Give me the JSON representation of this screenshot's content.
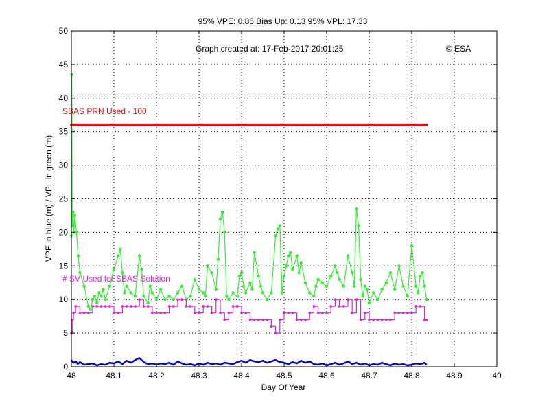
{
  "chart_data": {
    "type": "line",
    "title": "95% VPE: 0.86  Bias Up: 0.13  95% VPL: 17.33",
    "xlabel": "Day Of Year",
    "ylabel": "VPE in blue (m) / VPL in green (m)",
    "xlim": [
      48,
      49
    ],
    "ylim": [
      0,
      50
    ],
    "grid": true,
    "x_ticks": [
      "48",
      "48.1",
      "48.2",
      "48.3",
      "48.4",
      "48.5",
      "48.6",
      "48.7",
      "48.8",
      "48.9",
      "49"
    ],
    "y_ticks": [
      "0",
      "5",
      "10",
      "15",
      "20",
      "25",
      "30",
      "35",
      "40",
      "45",
      "50"
    ],
    "annotations": {
      "created": "Graph created at: 17-Feb-2017 20:01:25",
      "copyright": "© ESA",
      "sbas_prn": "SBAS PRN Used - 100",
      "sv_used": "# SV Used for SBAS Solution"
    },
    "colors": {
      "vpl": "#33ee33",
      "vpe": "#0000cc",
      "sv": "#dd22dd",
      "prn": "#dd1111"
    },
    "series": [
      {
        "key": "vpl",
        "x": [
          48.0,
          48.001,
          48.002,
          48.004,
          48.006,
          48.008,
          48.012,
          48.016,
          48.02,
          48.03,
          48.04,
          48.045,
          48.05,
          48.055,
          48.06,
          48.065,
          48.07,
          48.075,
          48.08,
          48.09,
          48.1,
          48.11,
          48.115,
          48.12,
          48.125,
          48.13,
          48.14,
          48.15,
          48.16,
          48.165,
          48.17,
          48.18,
          48.185,
          48.19,
          48.2,
          48.21,
          48.22,
          48.23,
          48.24,
          48.25,
          48.26,
          48.27,
          48.28,
          48.29,
          48.3,
          48.31,
          48.315,
          48.32,
          48.33,
          48.34,
          48.345,
          48.35,
          48.355,
          48.36,
          48.365,
          48.37,
          48.38,
          48.39,
          48.395,
          48.4,
          48.405,
          48.41,
          48.42,
          48.425,
          48.43,
          48.44,
          48.445,
          48.45,
          48.46,
          48.47,
          48.48,
          48.485,
          48.49,
          48.495,
          48.5,
          48.505,
          48.51,
          48.515,
          48.52,
          48.53,
          48.535,
          48.54,
          48.55,
          48.56,
          48.57,
          48.575,
          48.58,
          48.59,
          48.6,
          48.61,
          48.62,
          48.625,
          48.63,
          48.64,
          48.65,
          48.66,
          48.665,
          48.67,
          48.675,
          48.68,
          48.685,
          48.69,
          48.695,
          48.7,
          48.71,
          48.72,
          48.73,
          48.74,
          48.75,
          48.76,
          48.77,
          48.78,
          48.79,
          48.8,
          48.81,
          48.815,
          48.82,
          48.825,
          48.83,
          48.835
        ],
        "y": [
          19.5,
          43.5,
          21.0,
          23.0,
          20.0,
          22.5,
          20.0,
          16.5,
          14.0,
          12.0,
          9.0,
          8.5,
          10.0,
          10.5,
          9.5,
          11.0,
          10.5,
          11.5,
          10.0,
          12.0,
          14.5,
          16.5,
          17.5,
          14.0,
          11.0,
          12.0,
          11.0,
          10.5,
          16.5,
          14.5,
          10.5,
          9.5,
          12.0,
          11.0,
          10.0,
          11.5,
          10.0,
          10.5,
          10.0,
          11.0,
          12.0,
          10.0,
          10.5,
          13.0,
          11.5,
          11.0,
          10.5,
          15.0,
          14.0,
          11.5,
          16.0,
          22.0,
          23.0,
          20.0,
          10.5,
          10.0,
          11.0,
          10.5,
          13.5,
          14.0,
          12.0,
          11.0,
          12.5,
          11.5,
          17.0,
          13.5,
          12.0,
          11.0,
          10.0,
          11.0,
          19.5,
          20.5,
          21.0,
          11.0,
          13.5,
          15.0,
          16.5,
          17.0,
          14.5,
          16.5,
          14.0,
          15.5,
          12.5,
          11.0,
          10.5,
          12.0,
          13.0,
          12.5,
          12.0,
          13.5,
          15.0,
          14.0,
          13.0,
          12.0,
          16.5,
          14.0,
          12.0,
          23.5,
          21.0,
          13.0,
          10.5,
          12.0,
          11.5,
          9.5,
          11.0,
          10.0,
          11.5,
          12.5,
          14.0,
          11.5,
          15.0,
          12.0,
          10.5,
          18.0,
          12.0,
          11.0,
          13.5,
          14.0,
          12.0,
          10.0
        ]
      },
      {
        "key": "sv",
        "x": [
          48.0,
          48.002,
          48.005,
          48.01,
          48.02,
          48.03,
          48.04,
          48.05,
          48.06,
          48.07,
          48.08,
          48.09,
          48.1,
          48.11,
          48.12,
          48.13,
          48.14,
          48.15,
          48.16,
          48.17,
          48.18,
          48.19,
          48.2,
          48.21,
          48.22,
          48.23,
          48.24,
          48.25,
          48.26,
          48.27,
          48.28,
          48.29,
          48.3,
          48.31,
          48.32,
          48.33,
          48.34,
          48.35,
          48.36,
          48.37,
          48.38,
          48.39,
          48.4,
          48.41,
          48.42,
          48.43,
          48.44,
          48.45,
          48.46,
          48.47,
          48.48,
          48.49,
          48.5,
          48.51,
          48.52,
          48.53,
          48.54,
          48.55,
          48.56,
          48.57,
          48.58,
          48.59,
          48.6,
          48.61,
          48.62,
          48.63,
          48.64,
          48.65,
          48.66,
          48.67,
          48.68,
          48.69,
          48.7,
          48.71,
          48.72,
          48.73,
          48.74,
          48.75,
          48.76,
          48.77,
          48.78,
          48.79,
          48.8,
          48.81,
          48.82,
          48.83,
          48.835
        ],
        "y": [
          5,
          7,
          8,
          9,
          8,
          8,
          8,
          9,
          9,
          9,
          9,
          9,
          8,
          8,
          9,
          9,
          9,
          9,
          10,
          9,
          9,
          8,
          8,
          8,
          8,
          9,
          9,
          10,
          10,
          9,
          9,
          8,
          8,
          9,
          9,
          8,
          10,
          8,
          7,
          8,
          9,
          9,
          8,
          8,
          7,
          7,
          7,
          7,
          7,
          6,
          5,
          7,
          8,
          8,
          8,
          7,
          7,
          7,
          8,
          9,
          8,
          8,
          8,
          9,
          10,
          9,
          9,
          10,
          8,
          10,
          7,
          8,
          7,
          7,
          7,
          7,
          7,
          7,
          8,
          8,
          8,
          8,
          8,
          9,
          9,
          7,
          7
        ]
      },
      {
        "key": "vpe",
        "x": [
          48.0,
          48.005,
          48.01,
          48.015,
          48.02,
          48.03,
          48.04,
          48.05,
          48.06,
          48.07,
          48.08,
          48.09,
          48.1,
          48.11,
          48.12,
          48.13,
          48.14,
          48.15,
          48.16,
          48.17,
          48.18,
          48.19,
          48.2,
          48.21,
          48.22,
          48.23,
          48.24,
          48.25,
          48.26,
          48.27,
          48.28,
          48.29,
          48.3,
          48.31,
          48.32,
          48.33,
          48.34,
          48.35,
          48.36,
          48.37,
          48.38,
          48.39,
          48.4,
          48.41,
          48.42,
          48.43,
          48.44,
          48.45,
          48.46,
          48.47,
          48.48,
          48.49,
          48.5,
          48.51,
          48.52,
          48.53,
          48.54,
          48.55,
          48.56,
          48.57,
          48.58,
          48.59,
          48.6,
          48.61,
          48.62,
          48.63,
          48.64,
          48.65,
          48.66,
          48.67,
          48.68,
          48.69,
          48.7,
          48.71,
          48.72,
          48.73,
          48.74,
          48.75,
          48.76,
          48.77,
          48.78,
          48.79,
          48.8,
          48.81,
          48.82,
          48.83,
          48.835
        ],
        "y": [
          1.0,
          0.6,
          0.8,
          0.4,
          0.7,
          0.3,
          0.4,
          0.5,
          0.2,
          0.4,
          0.3,
          0.6,
          0.5,
          0.8,
          0.4,
          0.9,
          0.6,
          1.0,
          1.3,
          0.7,
          0.4,
          0.5,
          0.3,
          0.5,
          0.4,
          0.6,
          0.3,
          0.8,
          0.5,
          0.3,
          0.4,
          0.2,
          0.5,
          0.3,
          0.6,
          0.4,
          0.5,
          0.3,
          0.6,
          0.5,
          0.4,
          0.7,
          0.9,
          0.6,
          1.0,
          0.8,
          0.7,
          0.9,
          0.6,
          0.8,
          1.0,
          0.7,
          0.6,
          0.4,
          0.7,
          0.5,
          0.9,
          0.6,
          0.8,
          0.4,
          0.3,
          0.5,
          0.2,
          0.4,
          0.6,
          0.3,
          0.5,
          0.8,
          0.4,
          0.6,
          0.3,
          0.5,
          0.2,
          0.4,
          0.3,
          0.6,
          0.4,
          0.2,
          0.5,
          0.3,
          0.4,
          0.2,
          0.3,
          0.5,
          0.4,
          0.6,
          0.3
        ]
      },
      {
        "key": "prn",
        "x": [
          48.0,
          48.835
        ],
        "y": [
          36,
          36
        ]
      }
    ]
  }
}
